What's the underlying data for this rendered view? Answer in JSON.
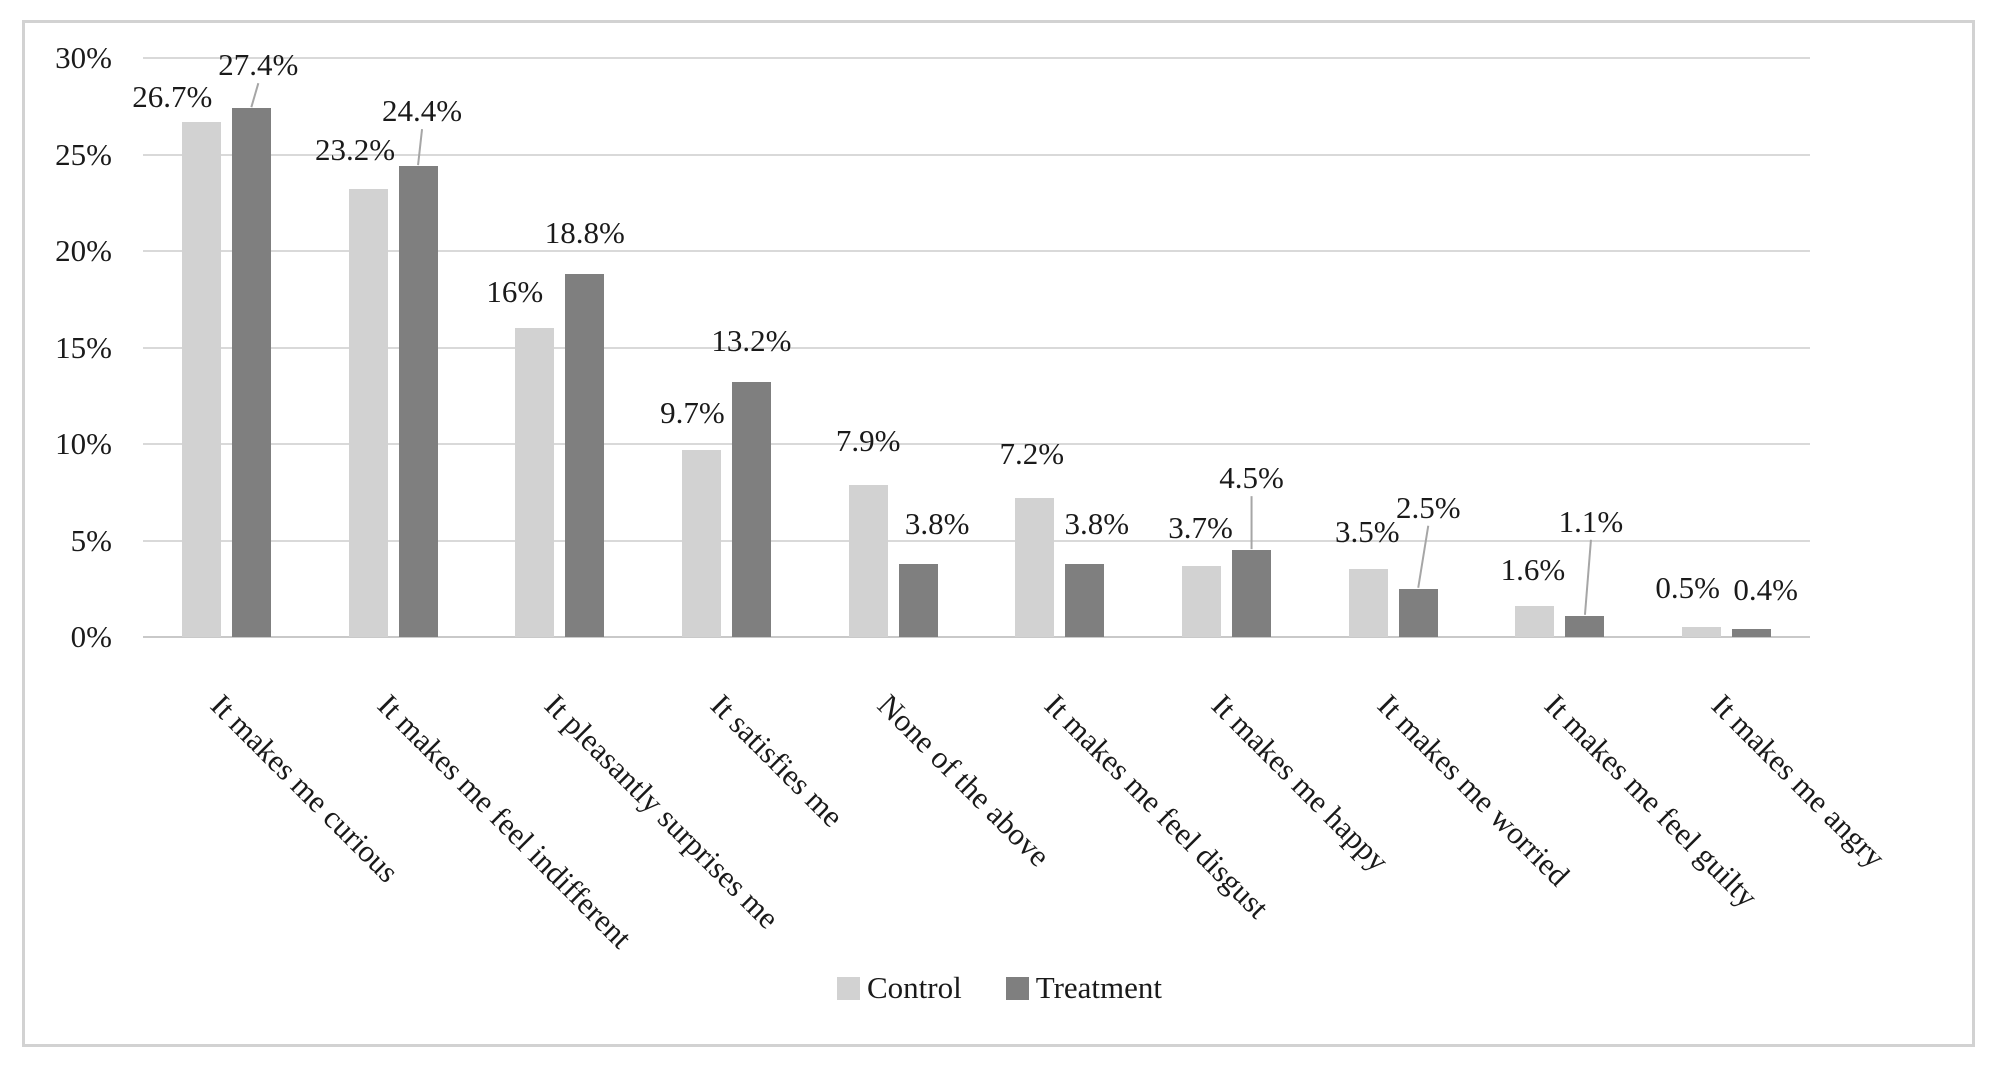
{
  "chart_data": {
    "type": "bar",
    "title": "",
    "xlabel": "",
    "ylabel": "",
    "categories": [
      "It makes me curious",
      "It makes me feel indifferent",
      "It pleasantly surprises me",
      "It satisfies me",
      "None of the above",
      "It makes me feel disgust",
      "It makes me happy",
      "It makes me worried",
      "It makes me feel guilty",
      "It makes me angry"
    ],
    "series": [
      {
        "name": "Control",
        "color": "#d2d2d2",
        "values": [
          26.7,
          23.2,
          16,
          9.7,
          7.9,
          7.2,
          3.7,
          3.5,
          1.6,
          0.5
        ],
        "data_labels": [
          "26.7%",
          "23.2%",
          "16%",
          "9.7%",
          "7.9%",
          "7.2%",
          "3.7%",
          "3.5%",
          "1.6%",
          "0.5%"
        ]
      },
      {
        "name": "Treatment",
        "color": "#7f7f7f",
        "values": [
          27.4,
          24.4,
          18.8,
          13.2,
          3.8,
          3.8,
          4.5,
          2.5,
          1.1,
          0.4
        ],
        "data_labels": [
          "27.4%",
          "24.4%",
          "18.8%",
          "13.2%",
          "3.8%",
          "3.8%",
          "4.5%",
          "2.5%",
          "1.1%",
          "0.4%"
        ]
      }
    ],
    "y_axis": {
      "min": 0,
      "max": 30,
      "step": 5,
      "tick_labels": [
        "0%",
        "5%",
        "10%",
        "15%",
        "20%",
        "25%",
        "30%"
      ]
    },
    "grid": true,
    "x_label_rotation_deg": 45,
    "legend": {
      "position": "bottom",
      "entries": [
        "Control",
        "Treatment"
      ]
    },
    "label_hints": {
      "control": [
        {
          "dx": -29,
          "raise": 0
        },
        {
          "dx": -13,
          "raise": 14
        },
        {
          "dx": -20,
          "raise": 11
        },
        {
          "dx": -9,
          "raise": 12
        },
        {
          "dx": 0,
          "raise": 19
        },
        {
          "dx": -3,
          "raise": 19
        },
        {
          "dx": -1,
          "raise": 13
        },
        {
          "dx": -1,
          "raise": 12
        },
        {
          "dx": -2,
          "raise": 11
        },
        {
          "dx": -14,
          "raise": 14
        }
      ],
      "treatment": [
        {
          "dx": 7,
          "raise": 18,
          "leader": true
        },
        {
          "dx": 4,
          "raise": 30,
          "leader": true
        },
        {
          "dx": 0,
          "raise": 16
        },
        {
          "dx": 0,
          "raise": 16
        },
        {
          "dx": 19,
          "raise": 15
        },
        {
          "dx": 12,
          "raise": 15
        },
        {
          "dx": 0,
          "raise": 47,
          "leader": true
        },
        {
          "dx": 10,
          "raise": 56,
          "leader": true
        },
        {
          "dx": 6,
          "raise": 69,
          "leader": true
        },
        {
          "dx": 14,
          "raise": 14
        }
      ]
    },
    "colors": {
      "background": "#ffffff",
      "frame_border": "#d2d2d2",
      "gridline": "#d9d9d9",
      "axis_line": "#c9c9c9",
      "text": "#1a1a1a",
      "leader_line": "#a6a6a6"
    }
  }
}
